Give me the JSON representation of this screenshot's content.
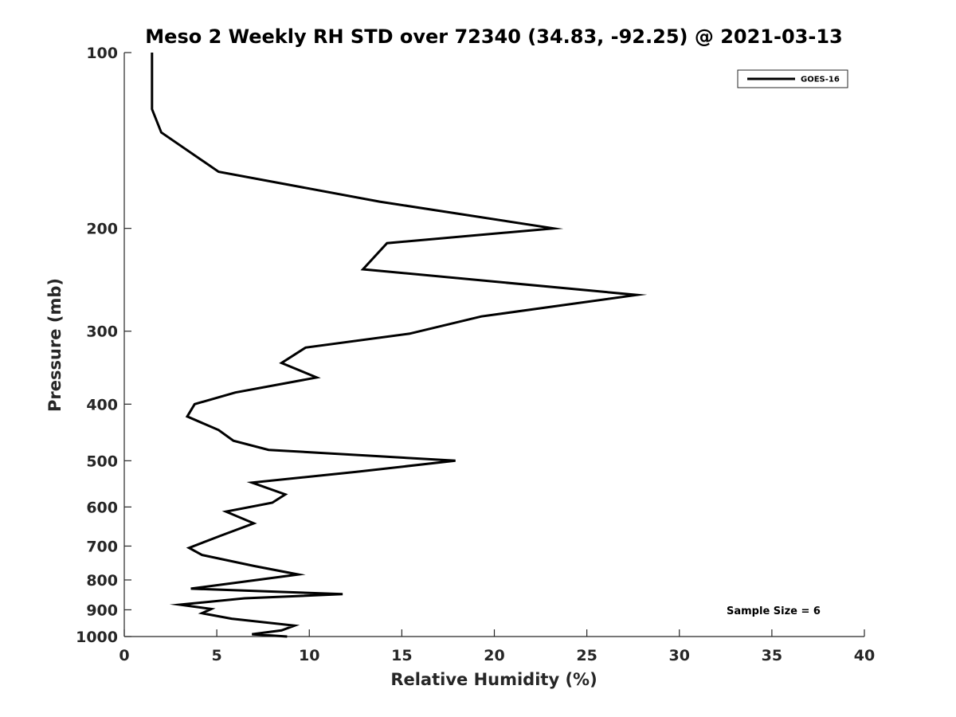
{
  "chart_data": {
    "type": "line",
    "title": "Meso 2 Weekly RH STD over 72340 (34.83, -92.25) @ 2021-03-13",
    "xlabel": "Relative Humidity (%)",
    "ylabel": "Pressure (mb)",
    "xlim": [
      0,
      40
    ],
    "ylim": [
      100,
      1000
    ],
    "y_scale": "log",
    "y_reversed": true,
    "x_ticks": [
      "0",
      "5",
      "10",
      "15",
      "20",
      "25",
      "30",
      "35",
      "40"
    ],
    "y_ticks": [
      "100",
      "200",
      "300",
      "400",
      "500",
      "600",
      "700",
      "800",
      "900",
      "1000"
    ],
    "grid": false,
    "legend": {
      "position": "top-right",
      "entries": [
        "GOES-16"
      ]
    },
    "annotation": "Sample Size = 6",
    "series": [
      {
        "name": "GOES-16",
        "color": "#000000",
        "x": [
          1.5,
          1.5,
          1.5,
          2.0,
          5.1,
          13.8,
          23.2,
          14.2,
          12.9,
          27.7,
          19.3,
          15.4,
          9.8,
          8.5,
          10.4,
          6.0,
          3.8,
          3.4,
          5.1,
          5.9,
          7.8,
          17.9,
          12.6,
          6.9,
          8.7,
          8.0,
          5.5,
          7.0,
          5.2,
          3.5,
          4.2,
          7.0,
          9.4,
          5.9,
          3.6,
          11.8,
          6.5,
          3.0,
          4.7,
          4.2,
          5.8,
          9.2,
          8.5,
          6.9,
          8.8
        ],
        "y": [
          100,
          110,
          125,
          137,
          160,
          180,
          200,
          212,
          235,
          260,
          283,
          303,
          320,
          340,
          360,
          382,
          400,
          420,
          443,
          462,
          479,
          500,
          522,
          545,
          571,
          590,
          611,
          640,
          672,
          705,
          725,
          757,
          783,
          810,
          828,
          846,
          860,
          882,
          897,
          912,
          932,
          958,
          976,
          991,
          1000
        ]
      }
    ]
  }
}
